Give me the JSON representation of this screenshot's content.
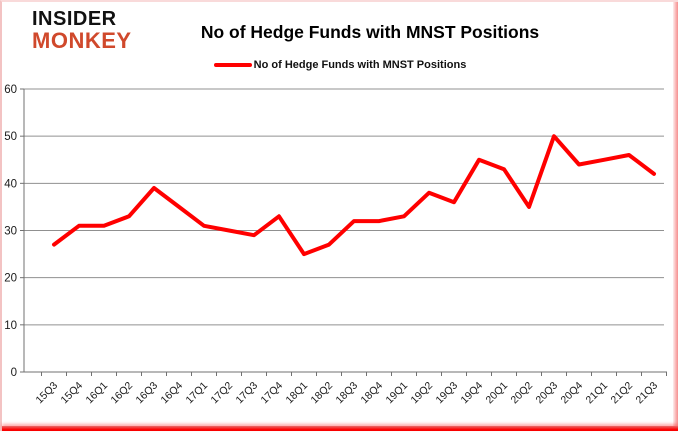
{
  "brand": {
    "line1": "INSIDER",
    "line2": "MONKEY",
    "line2_color": "#d0492c"
  },
  "header": {
    "title": "No of Hedge Funds with MNST Positions"
  },
  "legend": {
    "label": "No of Hedge Funds with MNST Positions",
    "color": "#ff0000"
  },
  "chart_data": {
    "type": "line",
    "title": "No of Hedge Funds with MNST Positions",
    "categories": [
      "15Q3",
      "15Q4",
      "16Q1",
      "16Q2",
      "16Q3",
      "16Q4",
      "17Q1",
      "17Q2",
      "17Q3",
      "17Q4",
      "18Q1",
      "18Q2",
      "18Q3",
      "18Q4",
      "19Q1",
      "19Q2",
      "19Q3",
      "19Q4",
      "20Q1",
      "20Q2",
      "20Q3",
      "20Q4",
      "21Q1",
      "21Q2",
      "21Q3"
    ],
    "series": [
      {
        "name": "No of Hedge Funds with MNST Positions",
        "color": "#ff0000",
        "values": [
          27,
          31,
          31,
          33,
          39,
          35,
          31,
          30,
          29,
          33,
          25,
          27,
          32,
          32,
          33,
          38,
          36,
          45,
          43,
          35,
          50,
          44,
          45,
          46,
          42
        ]
      }
    ],
    "xlabel": "",
    "ylabel": "",
    "ylim": [
      0,
      60
    ],
    "yticks": [
      0,
      10,
      20,
      30,
      40,
      50,
      60
    ],
    "grid": true,
    "legend_position": "top",
    "gridline_color": "#909090",
    "axis_color": "#707070",
    "tick_label_color": "#1a1a1a"
  }
}
